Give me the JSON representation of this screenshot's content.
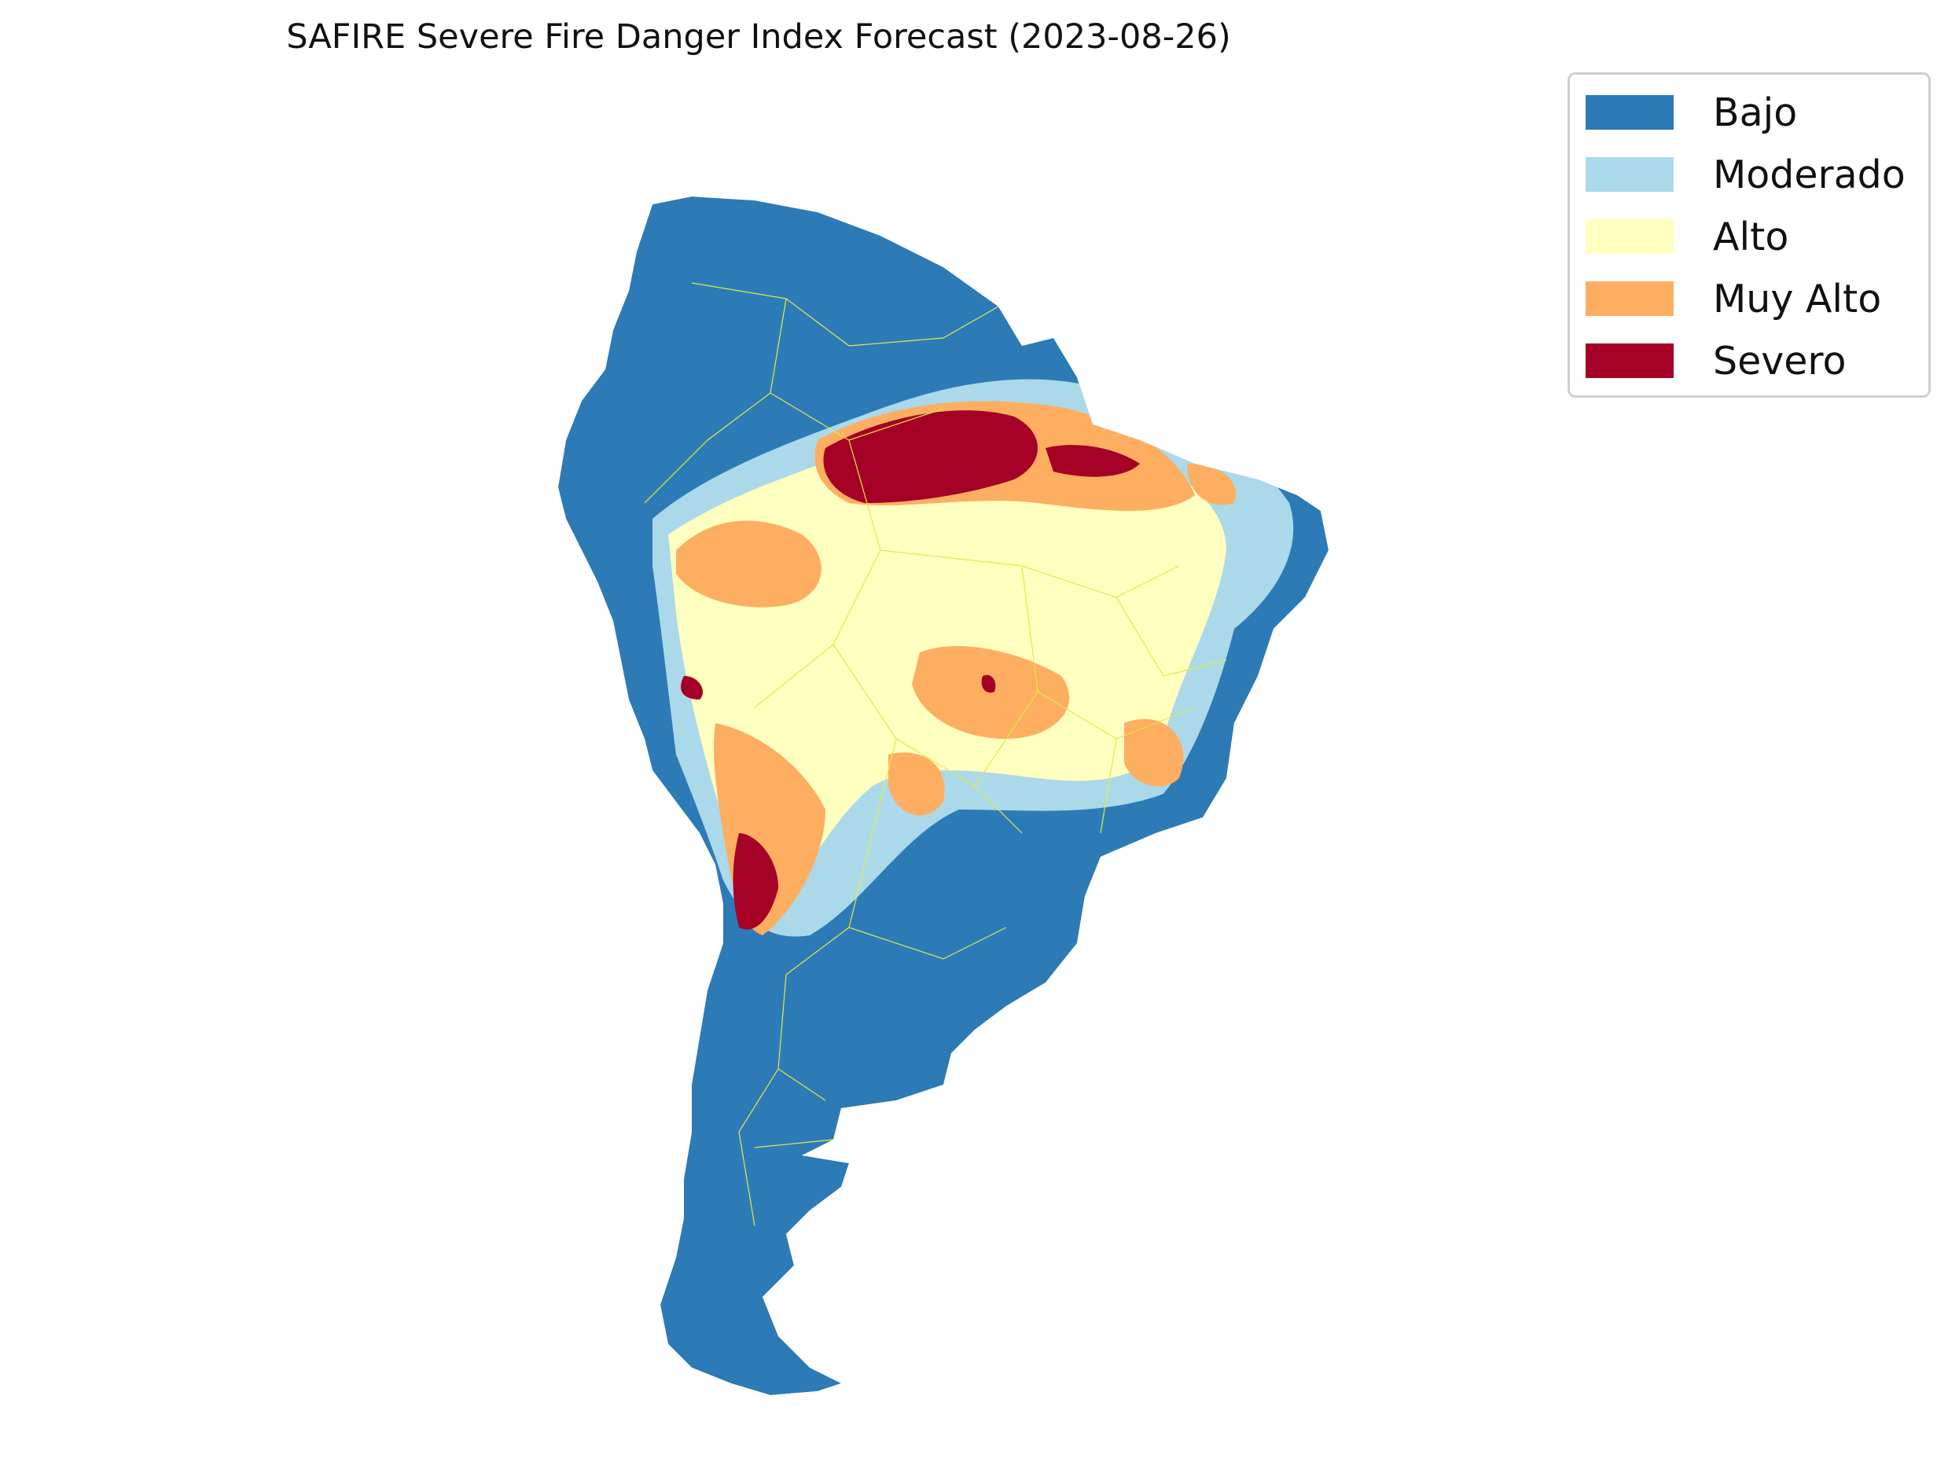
{
  "title": "SAFIRE Severe Fire Danger Index Forecast (2023-08-26)",
  "legend": {
    "items": [
      {
        "label": "Bajo",
        "color": "#2c7bb6"
      },
      {
        "label": "Moderado",
        "color": "#abd9e9"
      },
      {
        "label": "Alto",
        "color": "#ffffbf"
      },
      {
        "label": "Muy Alto",
        "color": "#fdae61"
      },
      {
        "label": "Severo",
        "color": "#a50026"
      }
    ]
  },
  "map": {
    "region": "South America",
    "boundary_color": "#e6e64a"
  }
}
